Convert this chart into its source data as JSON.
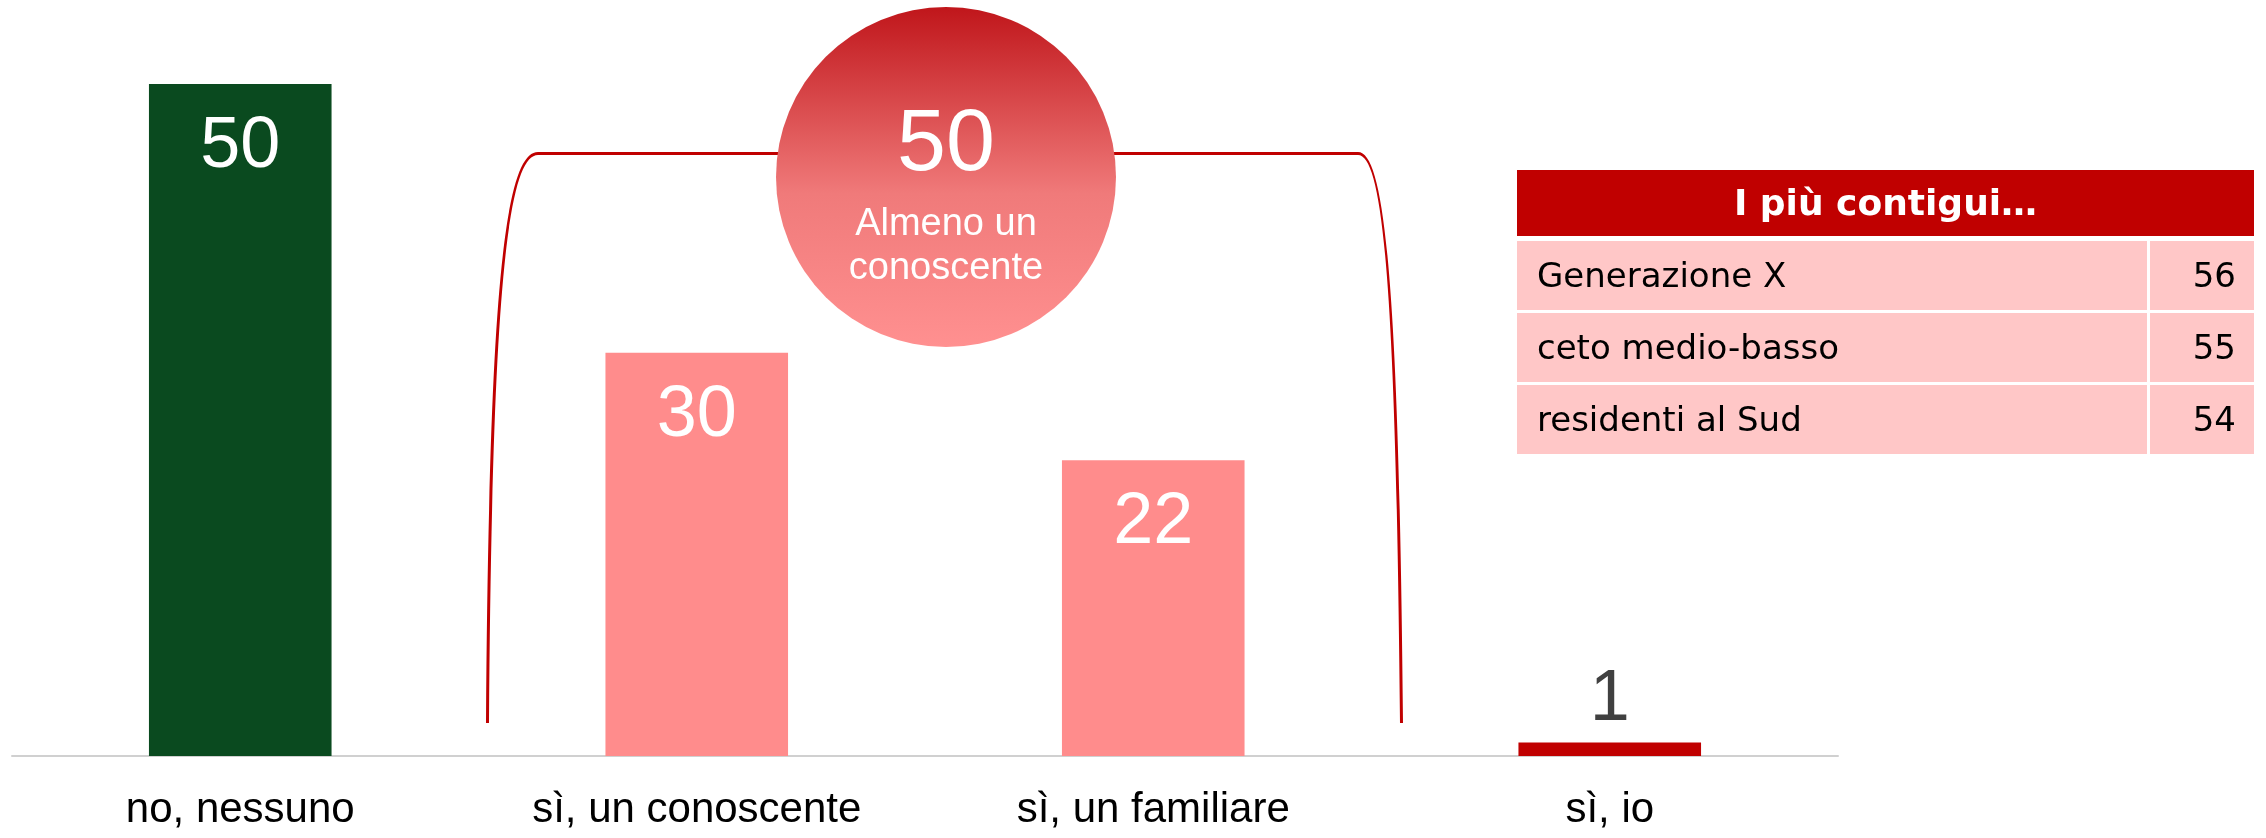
{
  "chart_data": {
    "type": "bar",
    "categories": [
      "no, nessuno",
      "sì, un conoscente",
      "sì, un familiare",
      "sì, io"
    ],
    "values": [
      50,
      30,
      22,
      1
    ],
    "colors": [
      "#0a4a1f",
      "#ff8c8c",
      "#ff8c8c",
      "#c00000"
    ],
    "data_labels": true,
    "annotations": [
      "50",
      "Almeno un conoscente",
      "I più contigui…",
      "Generazione X",
      "56",
      "ceto medio-basso",
      "55",
      "residenti al Sud",
      "54"
    ]
  }
}
